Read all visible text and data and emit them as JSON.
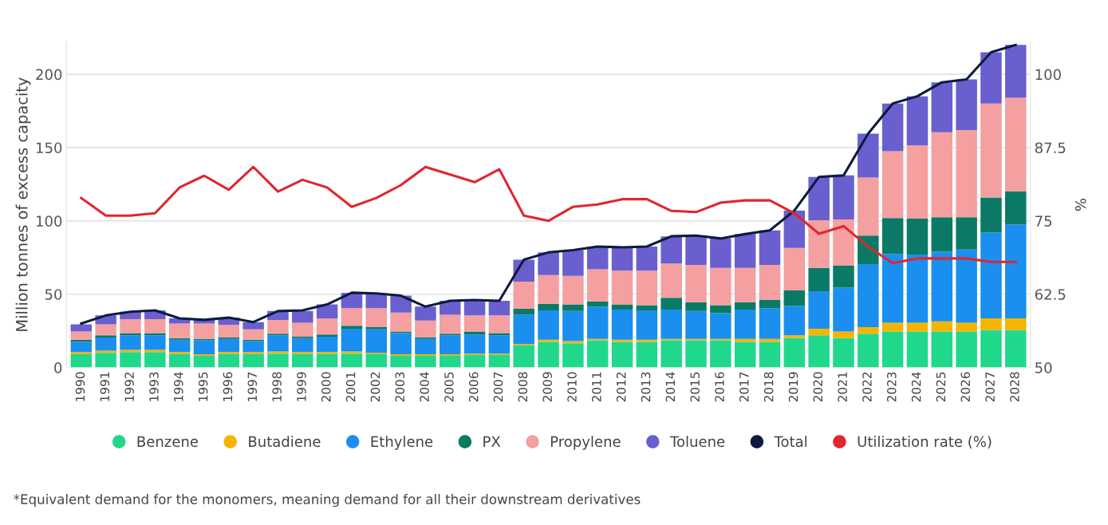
{
  "chart_data": {
    "type": "bar",
    "stacked": true,
    "ylabel": "Million tonnes of excess capacity",
    "y2label": "%",
    "categories": [
      "1990",
      "1991",
      "1992",
      "1993",
      "1994",
      "1995",
      "1996",
      "1997",
      "1998",
      "1999",
      "2000",
      "2001",
      "2002",
      "2003",
      "2004",
      "2005",
      "2006",
      "2007",
      "2008",
      "2009",
      "2010",
      "2011",
      "2012",
      "2013",
      "2014",
      "2015",
      "2016",
      "2017",
      "2018",
      "2019",
      "2020",
      "2021",
      "2022",
      "2023",
      "2024",
      "2025",
      "2026",
      "2027",
      "2028"
    ],
    "series": [
      {
        "name": "Benzene",
        "color": "#20d88c",
        "values": [
          9,
          10,
          10.5,
          10.5,
          9,
          8,
          9,
          9,
          9.5,
          9,
          9,
          9.5,
          9,
          8,
          8,
          8,
          8.5,
          8.5,
          15,
          17.5,
          16.5,
          18.5,
          17.5,
          17.5,
          18.5,
          18.5,
          18.5,
          17.5,
          17.5,
          20,
          22,
          20,
          23,
          24.5,
          24.5,
          24.5,
          24.5,
          25.5,
          25.5
        ]
      },
      {
        "name": "Butadiene",
        "color": "#f5b400",
        "values": [
          1.5,
          1.5,
          1.5,
          1.5,
          1.5,
          1,
          1.5,
          1.5,
          1.5,
          1.5,
          1.5,
          1.5,
          1,
          1,
          1,
          1,
          1,
          1,
          1,
          1.5,
          1.5,
          1,
          1.5,
          1.5,
          1,
          1,
          1,
          2,
          2,
          2,
          4.5,
          4.5,
          4.5,
          6,
          6,
          7,
          6,
          8,
          8
        ]
      },
      {
        "name": "Ethylene",
        "color": "#1a8fef",
        "values": [
          7,
          9,
          10,
          10,
          8.5,
          9.5,
          9,
          7.5,
          11,
          9.5,
          10.5,
          15.5,
          16,
          14.5,
          10.5,
          13,
          13,
          12.5,
          20,
          20,
          20.5,
          22,
          20.5,
          20,
          20,
          19,
          17.5,
          20,
          21,
          20,
          25.5,
          30,
          43,
          47,
          46.5,
          47.5,
          50,
          58.5,
          64
        ]
      },
      {
        "name": "PX",
        "color": "#0a7a66",
        "values": [
          1.5,
          1.5,
          1.5,
          1.5,
          1,
          1,
          1,
          1,
          1,
          1,
          1.5,
          2,
          1.5,
          1,
          1,
          1,
          2,
          1.5,
          4,
          4.5,
          4.5,
          3.5,
          3.5,
          3.5,
          8,
          6,
          5.5,
          5,
          5.5,
          10.5,
          16,
          15,
          19.5,
          24.5,
          24.5,
          23.5,
          22,
          24,
          22.5
        ]
      },
      {
        "name": "Propylene",
        "color": "#f4a0a0",
        "values": [
          5.5,
          7.5,
          9.5,
          9.5,
          10,
          10.5,
          8.5,
          7,
          9.5,
          9.5,
          11,
          12,
          13,
          13,
          11.5,
          13,
          11,
          12,
          18.5,
          19.5,
          19.5,
          22,
          23,
          23.5,
          23.5,
          25.5,
          25.5,
          23.5,
          24,
          29,
          32.5,
          31.5,
          39.5,
          45.5,
          50,
          58,
          59.5,
          64,
          64
        ]
      },
      {
        "name": "Toluene",
        "color": "#6a5fcf",
        "values": [
          5,
          6,
          5,
          6,
          3.5,
          2.5,
          5,
          5,
          6,
          8,
          9.5,
          10.5,
          10,
          11.5,
          9.5,
          9.5,
          10.5,
          10,
          15,
          15.5,
          17.5,
          15.5,
          16,
          16.5,
          18.5,
          20,
          20,
          23,
          23.5,
          25.5,
          29.5,
          30,
          30,
          32.5,
          33.5,
          34,
          34.5,
          35,
          36
        ]
      },
      {
        "name": "Total",
        "type": "line",
        "color": "#0d1b3e",
        "values": [
          30,
          35.5,
          38,
          39,
          33.5,
          32.5,
          34,
          31,
          38.5,
          39,
          43,
          51,
          50.5,
          49,
          41.5,
          45.5,
          46,
          45.5,
          73.5,
          78.5,
          80,
          82.5,
          82,
          82.5,
          89.5,
          90,
          88,
          91,
          93.5,
          107,
          130,
          131,
          159.5,
          180,
          185,
          194.5,
          196.5,
          215,
          220
        ]
      },
      {
        "name": "Utilization rate (%)",
        "type": "line",
        "axis": "y2",
        "color": "#e0262f",
        "values": [
          78.9,
          75.9,
          75.9,
          76.3,
          80.7,
          82.7,
          80.3,
          84.2,
          80,
          82,
          80.7,
          77.4,
          78.9,
          81.1,
          84.2,
          82.9,
          81.6,
          83.8,
          75.9,
          75,
          77.4,
          77.8,
          78.7,
          78.7,
          76.7,
          76.5,
          78.1,
          78.5,
          78.5,
          76.3,
          72.8,
          74.1,
          70.6,
          67.8,
          68.6,
          68.6,
          68.6,
          68,
          68
        ]
      }
    ],
    "ylim": [
      0,
      222
    ],
    "yticks": [
      0,
      50,
      100,
      150,
      200
    ],
    "y2lim": [
      50,
      105.5
    ],
    "y2ticks": [
      50,
      62.5,
      75,
      87.5,
      100
    ],
    "grid": "y",
    "legend": "bottom",
    "marker": "none",
    "line_style": "solid",
    "annotations": [
      "*Equivalent demand for the monomers, meaning demand for all their downstream derivatives"
    ]
  }
}
